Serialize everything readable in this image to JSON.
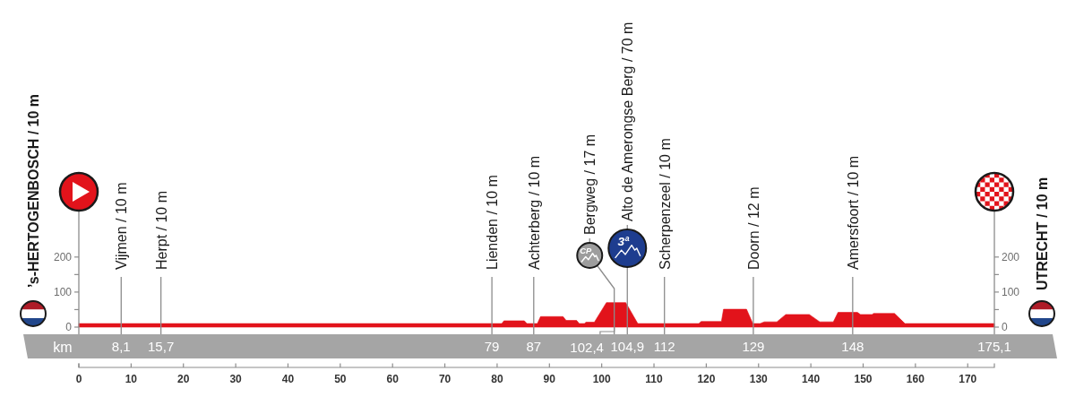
{
  "chart_data": {
    "type": "area",
    "ylabel": "’s-HERTOGENBOSCH / 10 m",
    "y2label": "UTRECHT / 10 m",
    "x2label": "km",
    "x": [
      0,
      80.9,
      81.3,
      85.2,
      85.7,
      87.7,
      88.3,
      92.6,
      93.2,
      95.2,
      95.7,
      96.7,
      97.0,
      98.6,
      100.9,
      104.6,
      106.9,
      118.6,
      119.0,
      122.9,
      123.3,
      127.7,
      128.9,
      130.3,
      131.1,
      133.5,
      135.2,
      139.7,
      141.7,
      144.3,
      145.2,
      148.9,
      149.5,
      151.7,
      152.0,
      156.0,
      158.0,
      175.1
    ],
    "values": [
      10,
      10,
      18,
      18,
      10,
      10,
      30,
      30,
      19,
      19,
      10,
      10,
      14,
      14,
      70,
      70,
      10,
      10,
      16,
      16,
      51,
      51,
      10,
      10,
      15,
      15,
      36,
      36,
      15,
      15,
      42,
      42,
      36,
      36,
      39,
      39,
      10,
      10
    ],
    "color": "#e2131b",
    "xlim": [
      0,
      175.1
    ],
    "xticks": [
      0,
      10,
      20,
      30,
      40,
      50,
      60,
      70,
      80,
      90,
      100,
      110,
      120,
      130,
      140,
      150,
      160,
      170
    ],
    "x2lim": [
      0,
      175.1
    ],
    "x2ticks": [
      {
        "value": 8.1,
        "label": "8,1"
      },
      {
        "value": 15.7,
        "label": "15,7"
      },
      79,
      87,
      {
        "value": 104.9,
        "label": "104,9"
      },
      112,
      129,
      148,
      {
        "value": 175.1,
        "label": "175,1"
      }
    ],
    "ylim": [
      0,
      330
    ],
    "yticks": [
      0,
      {
        "value": 50,
        "label": null
      },
      100,
      {
        "value": 150,
        "label": null
      },
      200
    ],
    "y2lim": [
      0,
      330
    ],
    "y2ticks": [
      0,
      {
        "value": 50,
        "label": null
      },
      100,
      {
        "value": 150,
        "label": null
      },
      200
    ],
    "ref_lines": [
      {
        "axis": "x",
        "value": 8.1,
        "label": "Vijmen / 10 m",
        "color": "#8c8c8c"
      },
      {
        "axis": "x",
        "value": 15.7,
        "label": "Herpt / 10 m",
        "color": "#8c8c8c"
      },
      {
        "axis": "x",
        "value": 79,
        "label": "Lienden / 10 m",
        "color": "#8c8c8c"
      },
      {
        "axis": "x",
        "value": 87,
        "label": "Achterberg / 10 m",
        "color": "#8c8c8c"
      },
      {
        "axis": "x",
        "value": 102.4,
        "label": "Bergweg / 17 m",
        "color": "#8c8c8c"
      },
      {
        "axis": "x",
        "value": 104.9,
        "label": "Alto de Amerongse Berg / 70 m",
        "color": "#8c8c8c"
      },
      {
        "axis": "x",
        "value": 112,
        "label": "Scherpenzeel / 10 m",
        "color": "#8c8c8c"
      },
      {
        "axis": "x",
        "value": 129,
        "label": "Doorn / 12 m",
        "color": "#8c8c8c"
      },
      {
        "axis": "x",
        "value": 148,
        "label": "Amersfoort / 10 m",
        "color": "#8c8c8c"
      }
    ],
    "annotations": [
      "CP",
      {
        "text": "3ª",
        "x": 104.9,
        "y": 245
      },
      {
        "text": "102,4",
        "x": 102.4,
        "y": 0
      }
    ]
  }
}
